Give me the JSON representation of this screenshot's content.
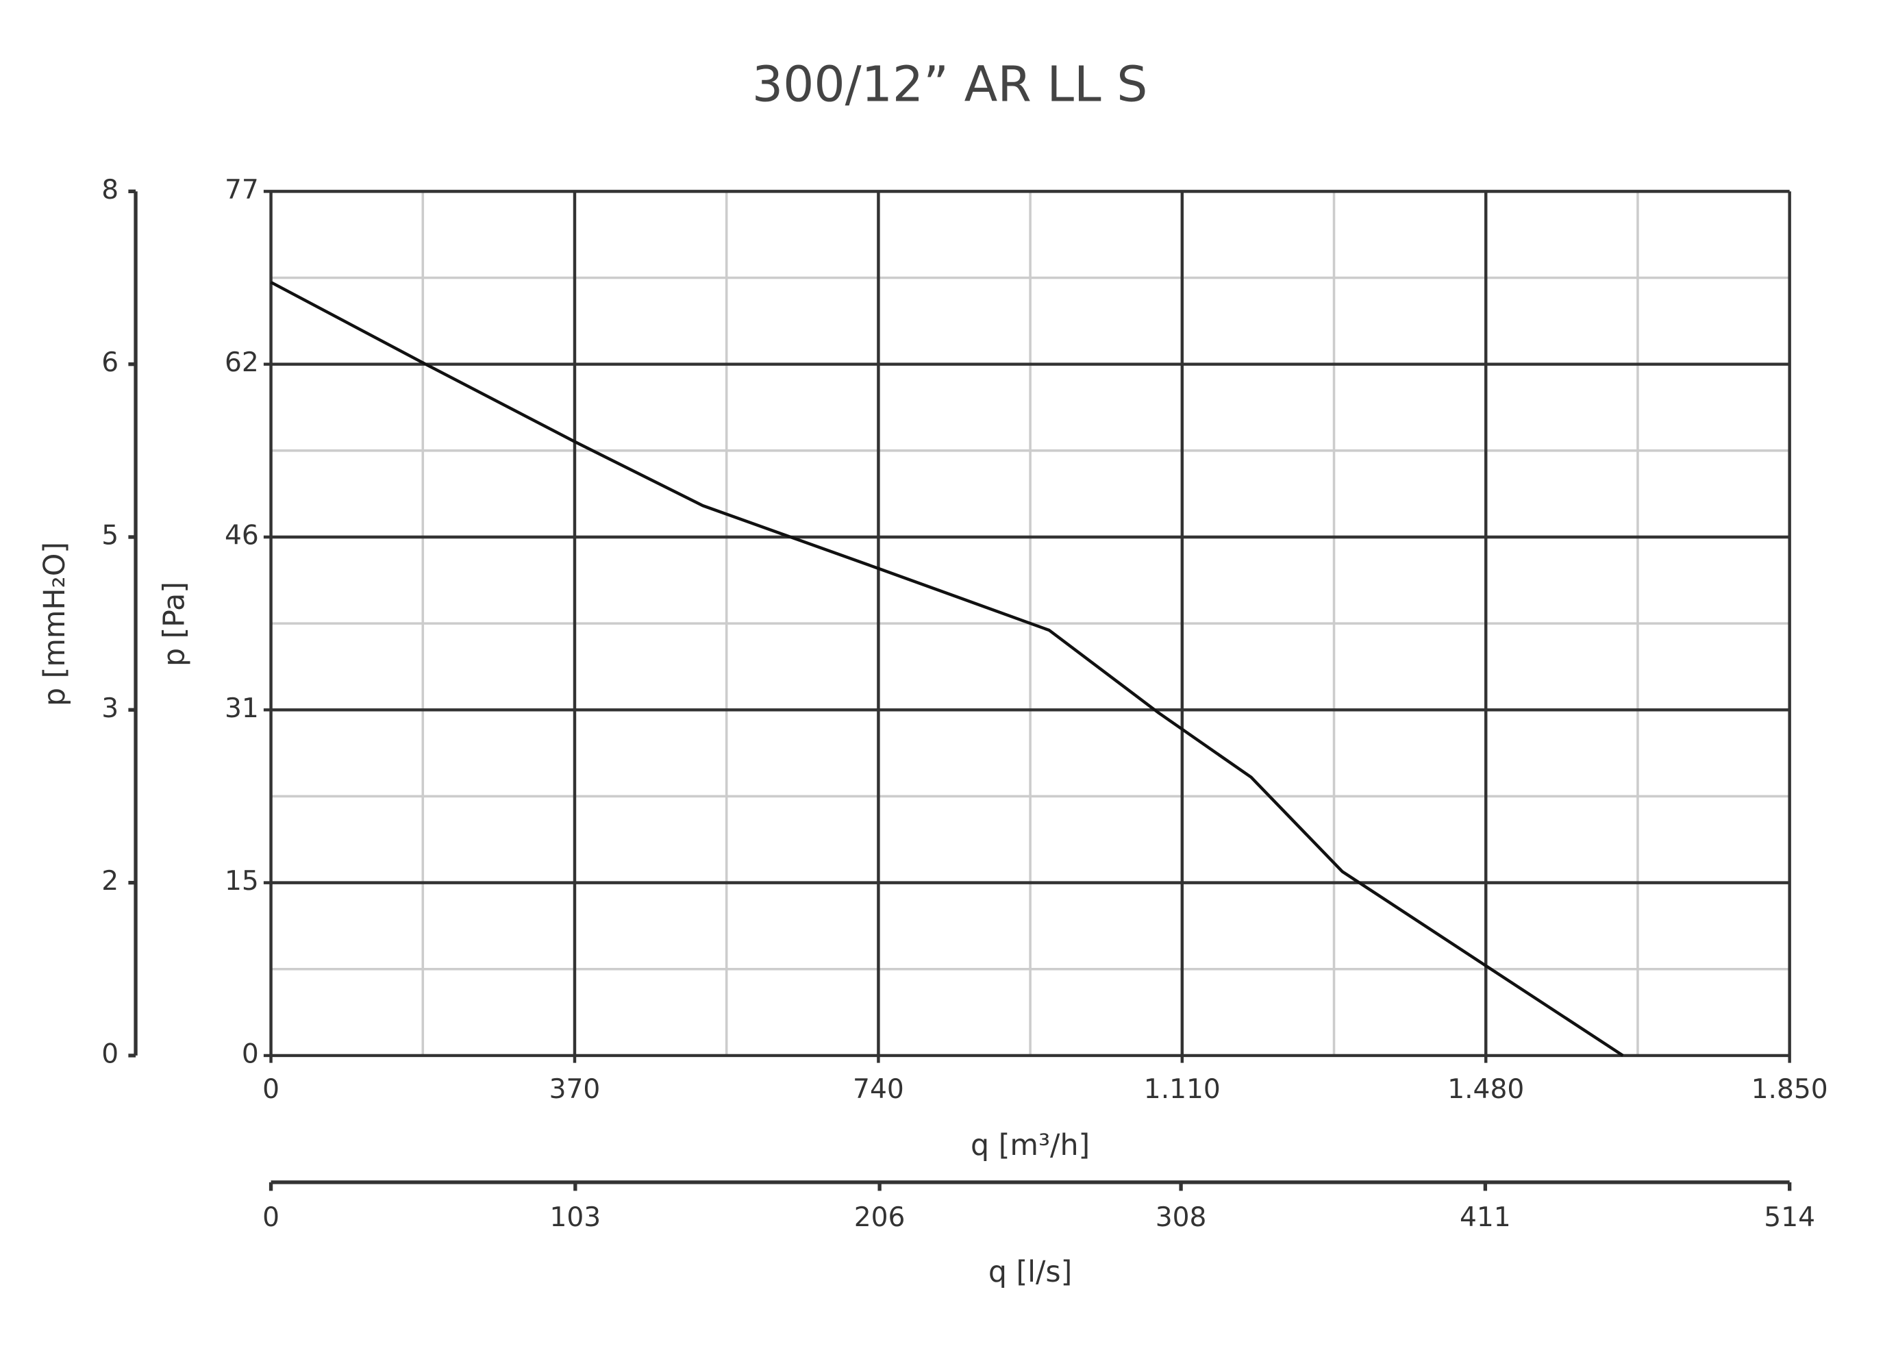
{
  "chart_data": {
    "type": "line",
    "title": "300/12” AR LL S",
    "x_label": "q [m³/h]",
    "y_label": "p [Pa]",
    "y2_label": "p [mmH₂O]",
    "x2_label": "q [l/s]",
    "x": [
      0,
      191,
      370,
      526,
      740,
      948,
      1082,
      1194,
      1305,
      1480,
      1647
    ],
    "series": [
      {
        "name": "300/12” AR LL S",
        "color": "#111111",
        "values": [
          68.9,
          61.5,
          54.7,
          49,
          43.4,
          37.9,
          30.5,
          24.8,
          16.4,
          8,
          0
        ]
      }
    ],
    "xlim": [
      0,
      1850
    ],
    "xticks": [
      0,
      370,
      740,
      {
        "value": 1110,
        "label": "1.110"
      },
      {
        "value": 1480,
        "label": "1.480"
      },
      {
        "value": 1850,
        "label": "1.850"
      }
    ],
    "minor_xticks": [
      185,
      555,
      925,
      1295,
      1665
    ],
    "ylim": [
      0,
      77
    ],
    "yticks": [
      0,
      {
        "value": 15.4,
        "label": "15"
      },
      {
        "value": 30.8,
        "label": "31"
      },
      {
        "value": 46.2,
        "label": "46"
      },
      {
        "value": 61.6,
        "label": "62"
      },
      77
    ],
    "minor_yticks": [
      7.7,
      23.1,
      38.5,
      53.9,
      69.3
    ],
    "y2lim": [
      0,
      7.85
    ],
    "y2ticks": [
      0,
      {
        "value": 1.57,
        "label": "2"
      },
      {
        "value": 3.14,
        "label": "3"
      },
      {
        "value": 4.71,
        "label": "5"
      },
      {
        "value": 6.28,
        "label": "6"
      },
      {
        "value": 7.85,
        "label": "8"
      }
    ],
    "x2lim": [
      0,
      514
    ],
    "x2ticks": [
      0,
      103,
      206,
      308,
      411,
      514
    ],
    "grid": true,
    "grid_color": "#333333",
    "minor_grid_color": "#cccccc"
  }
}
